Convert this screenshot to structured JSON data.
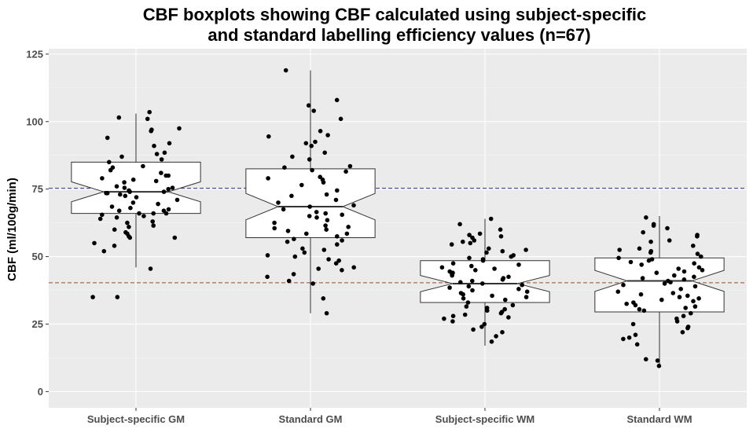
{
  "chart_data": {
    "type": "boxplot",
    "title_lines": [
      "CBF boxplots showing CBF calculated using subject-specific",
      "and standard labelling efficiency values (n=67)"
    ],
    "xlabel": "",
    "ylabel": "CBF (ml/100g/min)",
    "ylim": [
      -6,
      127
    ],
    "y_ticks": [
      0,
      25,
      50,
      75,
      100,
      125
    ],
    "grid": true,
    "notched": true,
    "reference_lines": [
      {
        "value": 75.3,
        "color": "#2b2b8a",
        "style": "dashed"
      },
      {
        "value": 40.3,
        "color": "#9a4a2a",
        "style": "dashed"
      }
    ],
    "categories": [
      "Subject-specific GM",
      "Standard GM",
      "Subject-specific WM",
      "Standard WM"
    ],
    "boxes": [
      {
        "name": "Subject-specific GM",
        "min": 46,
        "q1": 66,
        "median": 74,
        "q3": 85,
        "max": 103,
        "notch_low": 70.3,
        "notch_high": 77.7
      },
      {
        "name": "Standard GM",
        "min": 29,
        "q1": 57,
        "median": 68.5,
        "q3": 82.5,
        "max": 119,
        "notch_low": 63.6,
        "notch_high": 73.4
      },
      {
        "name": "Subject-specific WM",
        "min": 17,
        "q1": 33,
        "median": 40,
        "q3": 48.5,
        "max": 64,
        "notch_low": 37,
        "notch_high": 43
      },
      {
        "name": "Standard WM",
        "min": 10,
        "q1": 29.5,
        "median": 41,
        "q3": 49.5,
        "max": 65,
        "notch_low": 37.1,
        "notch_high": 44.9
      }
    ],
    "points": [
      [
        103.5,
        101.5,
        101,
        97.5,
        97,
        96.5,
        94,
        92,
        91,
        88.5,
        88,
        87,
        86,
        85,
        83.5,
        83,
        82,
        81,
        80,
        80,
        79,
        78.5,
        78,
        77.5,
        76,
        75.5,
        75.5,
        75,
        74.5,
        74,
        74,
        73.5,
        73.5,
        73,
        72.5,
        72,
        71,
        70,
        69.5,
        68.5,
        68,
        67.5,
        67,
        67,
        66,
        66,
        66,
        65.5,
        65,
        64,
        63,
        62.5,
        61.5,
        60,
        59,
        58.5,
        57.5,
        57,
        57,
        55,
        54,
        52,
        45.5,
        35,
        35,
        64.5,
        61
      ],
      [
        119,
        108,
        106,
        104,
        101,
        96.5,
        95,
        94.5,
        92.5,
        92,
        91,
        88.5,
        87,
        86,
        83.5,
        83,
        82,
        81.5,
        79.5,
        79,
        78.5,
        77.5,
        76.5,
        74.5,
        73,
        72.5,
        71,
        69,
        68.5,
        67.5,
        66.5,
        66,
        65.5,
        64.5,
        63.5,
        62.5,
        61,
        60.5,
        59.5,
        58.5,
        57.5,
        56.5,
        56,
        55.5,
        54.5,
        53,
        51.5,
        50.5,
        50,
        49,
        48.5,
        47.5,
        46,
        45.5,
        45,
        43.5,
        42.5,
        41,
        40,
        34.5,
        29,
        61.5,
        65,
        52.5,
        58.5,
        60,
        70
      ],
      [
        64,
        62,
        60,
        58.5,
        58,
        57.5,
        57,
        56,
        55.5,
        55,
        54.5,
        53,
        52.5,
        52,
        51.5,
        50.5,
        50,
        49.5,
        49,
        48.5,
        47.5,
        47,
        46.5,
        46,
        45.5,
        45,
        44.5,
        44,
        43.5,
        43,
        42.5,
        42,
        41.5,
        41,
        40.5,
        40,
        39.5,
        39,
        38.5,
        38,
        37.5,
        37,
        36.5,
        36,
        35.5,
        35,
        34.5,
        34,
        33,
        32,
        31.5,
        31,
        30.5,
        30,
        29.5,
        29,
        28.5,
        28,
        27.5,
        27,
        26,
        25,
        24,
        23,
        22,
        20.5,
        18.5
      ],
      [
        64.5,
        62,
        61.5,
        60.5,
        59,
        58,
        57.5,
        56,
        55.5,
        54,
        53,
        52.5,
        52,
        51.5,
        51,
        50,
        49.5,
        49,
        48.5,
        48,
        47.5,
        47,
        46,
        45.5,
        45,
        44.5,
        44,
        43,
        42.5,
        42,
        41.5,
        41,
        40.5,
        40,
        39.5,
        39,
        38,
        37,
        36.5,
        36,
        35.5,
        35,
        34.5,
        34,
        33.5,
        33,
        32.5,
        32,
        31.5,
        31,
        30.5,
        30,
        29,
        28,
        27,
        26,
        25,
        24,
        23.5,
        22,
        21,
        20,
        19.5,
        17.5,
        12,
        11.5,
        9.5
      ]
    ]
  }
}
